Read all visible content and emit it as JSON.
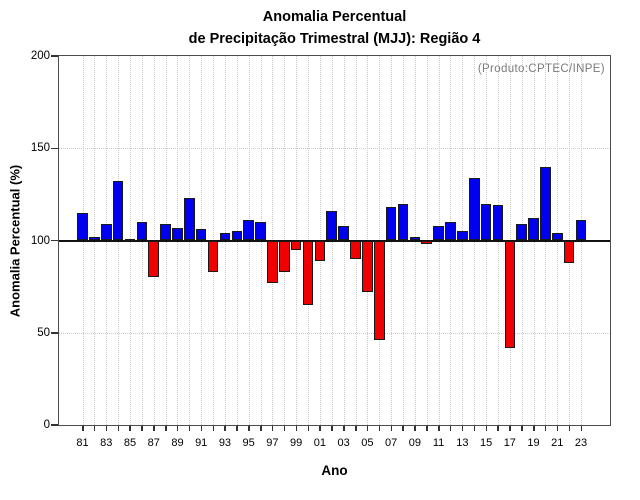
{
  "title": {
    "line1": "Anomalia Percentual",
    "line2": "de Precipitação Trimestral (MJJ): Região 4"
  },
  "annotation": "(Produto:CPTEC/INPE)",
  "axes": {
    "y_label": "Anomalia Percentual (%)",
    "x_label": "Ano",
    "y_ticks": [
      0,
      50,
      100,
      150,
      200
    ],
    "x_tick_labels": [
      "81",
      "83",
      "85",
      "87",
      "89",
      "91",
      "93",
      "95",
      "97",
      "99",
      "01",
      "03",
      "05",
      "07",
      "09",
      "11",
      "13",
      "15",
      "17",
      "19",
      "21",
      "23"
    ]
  },
  "chart_data": {
    "type": "bar",
    "title": "Anomalia Percentual de Precipitação Trimestral (MJJ): Região 4",
    "xlabel": "Ano",
    "ylabel": "Anomalia Percentual (%)",
    "ylim": [
      0,
      200
    ],
    "baseline": 100,
    "grid": true,
    "gridlines_horizontal_at": [
      50,
      100,
      150
    ],
    "legend": "none",
    "annotation_top_right": "(Produto:CPTEC/INPE)",
    "categories": [
      "81",
      "82",
      "83",
      "84",
      "85",
      "86",
      "87",
      "88",
      "89",
      "90",
      "91",
      "92",
      "93",
      "94",
      "95",
      "96",
      "97",
      "98",
      "99",
      "00",
      "01",
      "02",
      "03",
      "04",
      "05",
      "06",
      "07",
      "08",
      "09",
      "10",
      "11",
      "12",
      "13",
      "14",
      "15",
      "16",
      "17",
      "18",
      "19",
      "20",
      "21",
      "22",
      "23"
    ],
    "values": [
      115,
      102,
      109,
      132,
      101,
      110,
      80,
      109,
      107,
      123,
      106,
      83,
      104,
      105,
      111,
      110,
      77,
      83,
      95,
      65,
      89,
      116,
      108,
      90,
      72,
      46,
      118,
      120,
      102,
      98,
      108,
      110,
      105,
      134,
      120,
      119,
      42,
      109,
      112,
      140,
      104,
      88,
      111
    ],
    "colors": {
      "above_baseline": "#0000F0",
      "below_baseline": "#F00000"
    }
  }
}
